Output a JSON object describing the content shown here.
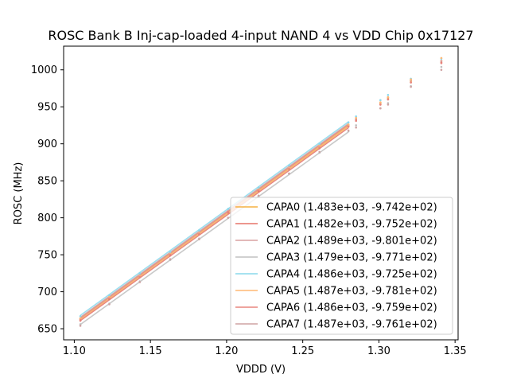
{
  "chart_data": {
    "type": "line",
    "title": "ROSC Bank B Inj-cap-loaded 4-input NAND 4 vs VDD Chip 0x17127",
    "xlabel": "VDDD (V)",
    "ylabel": "ROSC (MHz)",
    "xlim": [
      1.093,
      1.352
    ],
    "ylim": [
      635,
      1032
    ],
    "xticks": [
      1.1,
      1.15,
      1.2,
      1.25,
      1.3,
      1.35
    ],
    "xtick_labels": [
      "1.10",
      "1.15",
      "1.20",
      "1.25",
      "1.30",
      "1.35"
    ],
    "yticks": [
      650,
      700,
      750,
      800,
      850,
      900,
      950,
      1000
    ],
    "ytick_labels": [
      "650",
      "700",
      "750",
      "800",
      "850",
      "900",
      "950",
      "1000"
    ],
    "grid": false,
    "legend_position": "lower-right",
    "fit_x_range": [
      1.104,
      1.28
    ],
    "measured_x": [
      1.104,
      1.123,
      1.143,
      1.163,
      1.182,
      1.201,
      1.221,
      1.241,
      1.261,
      1.28,
      1.285,
      1.301,
      1.306,
      1.321,
      1.341
    ],
    "series": [
      {
        "name": "CAPA0 (1.483e+03, -9.742e+02)",
        "slope": 1483,
        "intercept": -974.2,
        "color": "#f5b041",
        "points": [
          663,
          692,
          721,
          751,
          779,
          808,
          838,
          867,
          896,
          925,
          934,
          955,
          962,
          985,
          1012
        ]
      },
      {
        "name": "CAPA1 (1.482e+03, -9.752e+02)",
        "slope": 1482,
        "intercept": -975.2,
        "color": "#e57368",
        "points": [
          661,
          690,
          720,
          749,
          778,
          807,
          836,
          866,
          894,
          924,
          932,
          953,
          960,
          983,
          1010
        ]
      },
      {
        "name": "CAPA2 (1.489e+03, -9.801e+02)",
        "slope": 1489,
        "intercept": -980.1,
        "color": "#d9a0a0",
        "points": [
          664,
          692,
          722,
          752,
          780,
          809,
          838,
          868,
          897,
          926,
          934,
          956,
          963,
          986,
          1012
        ]
      },
      {
        "name": "CAPA3 (1.479e+03, -9.771e+02)",
        "slope": 1479,
        "intercept": -977.1,
        "color": "#c0c0c0",
        "points": [
          656,
          684,
          714,
          743,
          772,
          800,
          829,
          859,
          888,
          917,
          925,
          948,
          955,
          978,
          1004
        ]
      },
      {
        "name": "CAPA4 (1.486e+03, -9.725e+02)",
        "slope": 1486,
        "intercept": -972.5,
        "color": "#89d8ec",
        "points": [
          667,
          695,
          725,
          754,
          783,
          812,
          841,
          871,
          900,
          929,
          937,
          959,
          966,
          988,
          1015
        ]
      },
      {
        "name": "CAPA5 (1.487e+03, -9.781e+02)",
        "slope": 1487,
        "intercept": -978.1,
        "color": "#ffb873",
        "points": [
          664,
          693,
          721,
          751,
          779,
          808,
          838,
          867,
          897,
          926,
          935,
          956,
          963,
          987,
          1016
        ]
      },
      {
        "name": "CAPA6 (1.486e+03, -9.759e+02)",
        "slope": 1486,
        "intercept": -975.9,
        "color": "#e8867e",
        "points": [
          662,
          691,
          720,
          750,
          778,
          808,
          837,
          866,
          895,
          923,
          931,
          953,
          960,
          983,
          1009
        ]
      },
      {
        "name": "CAPA7 (1.487e+03, -9.761e+02)",
        "slope": 1487,
        "intercept": -976.1,
        "color": "#cfa3a3",
        "points": [
          654,
          683,
          713,
          744,
          771,
          800,
          830,
          860,
          889,
          918,
          922,
          948,
          953,
          977,
          1000
        ]
      }
    ]
  }
}
